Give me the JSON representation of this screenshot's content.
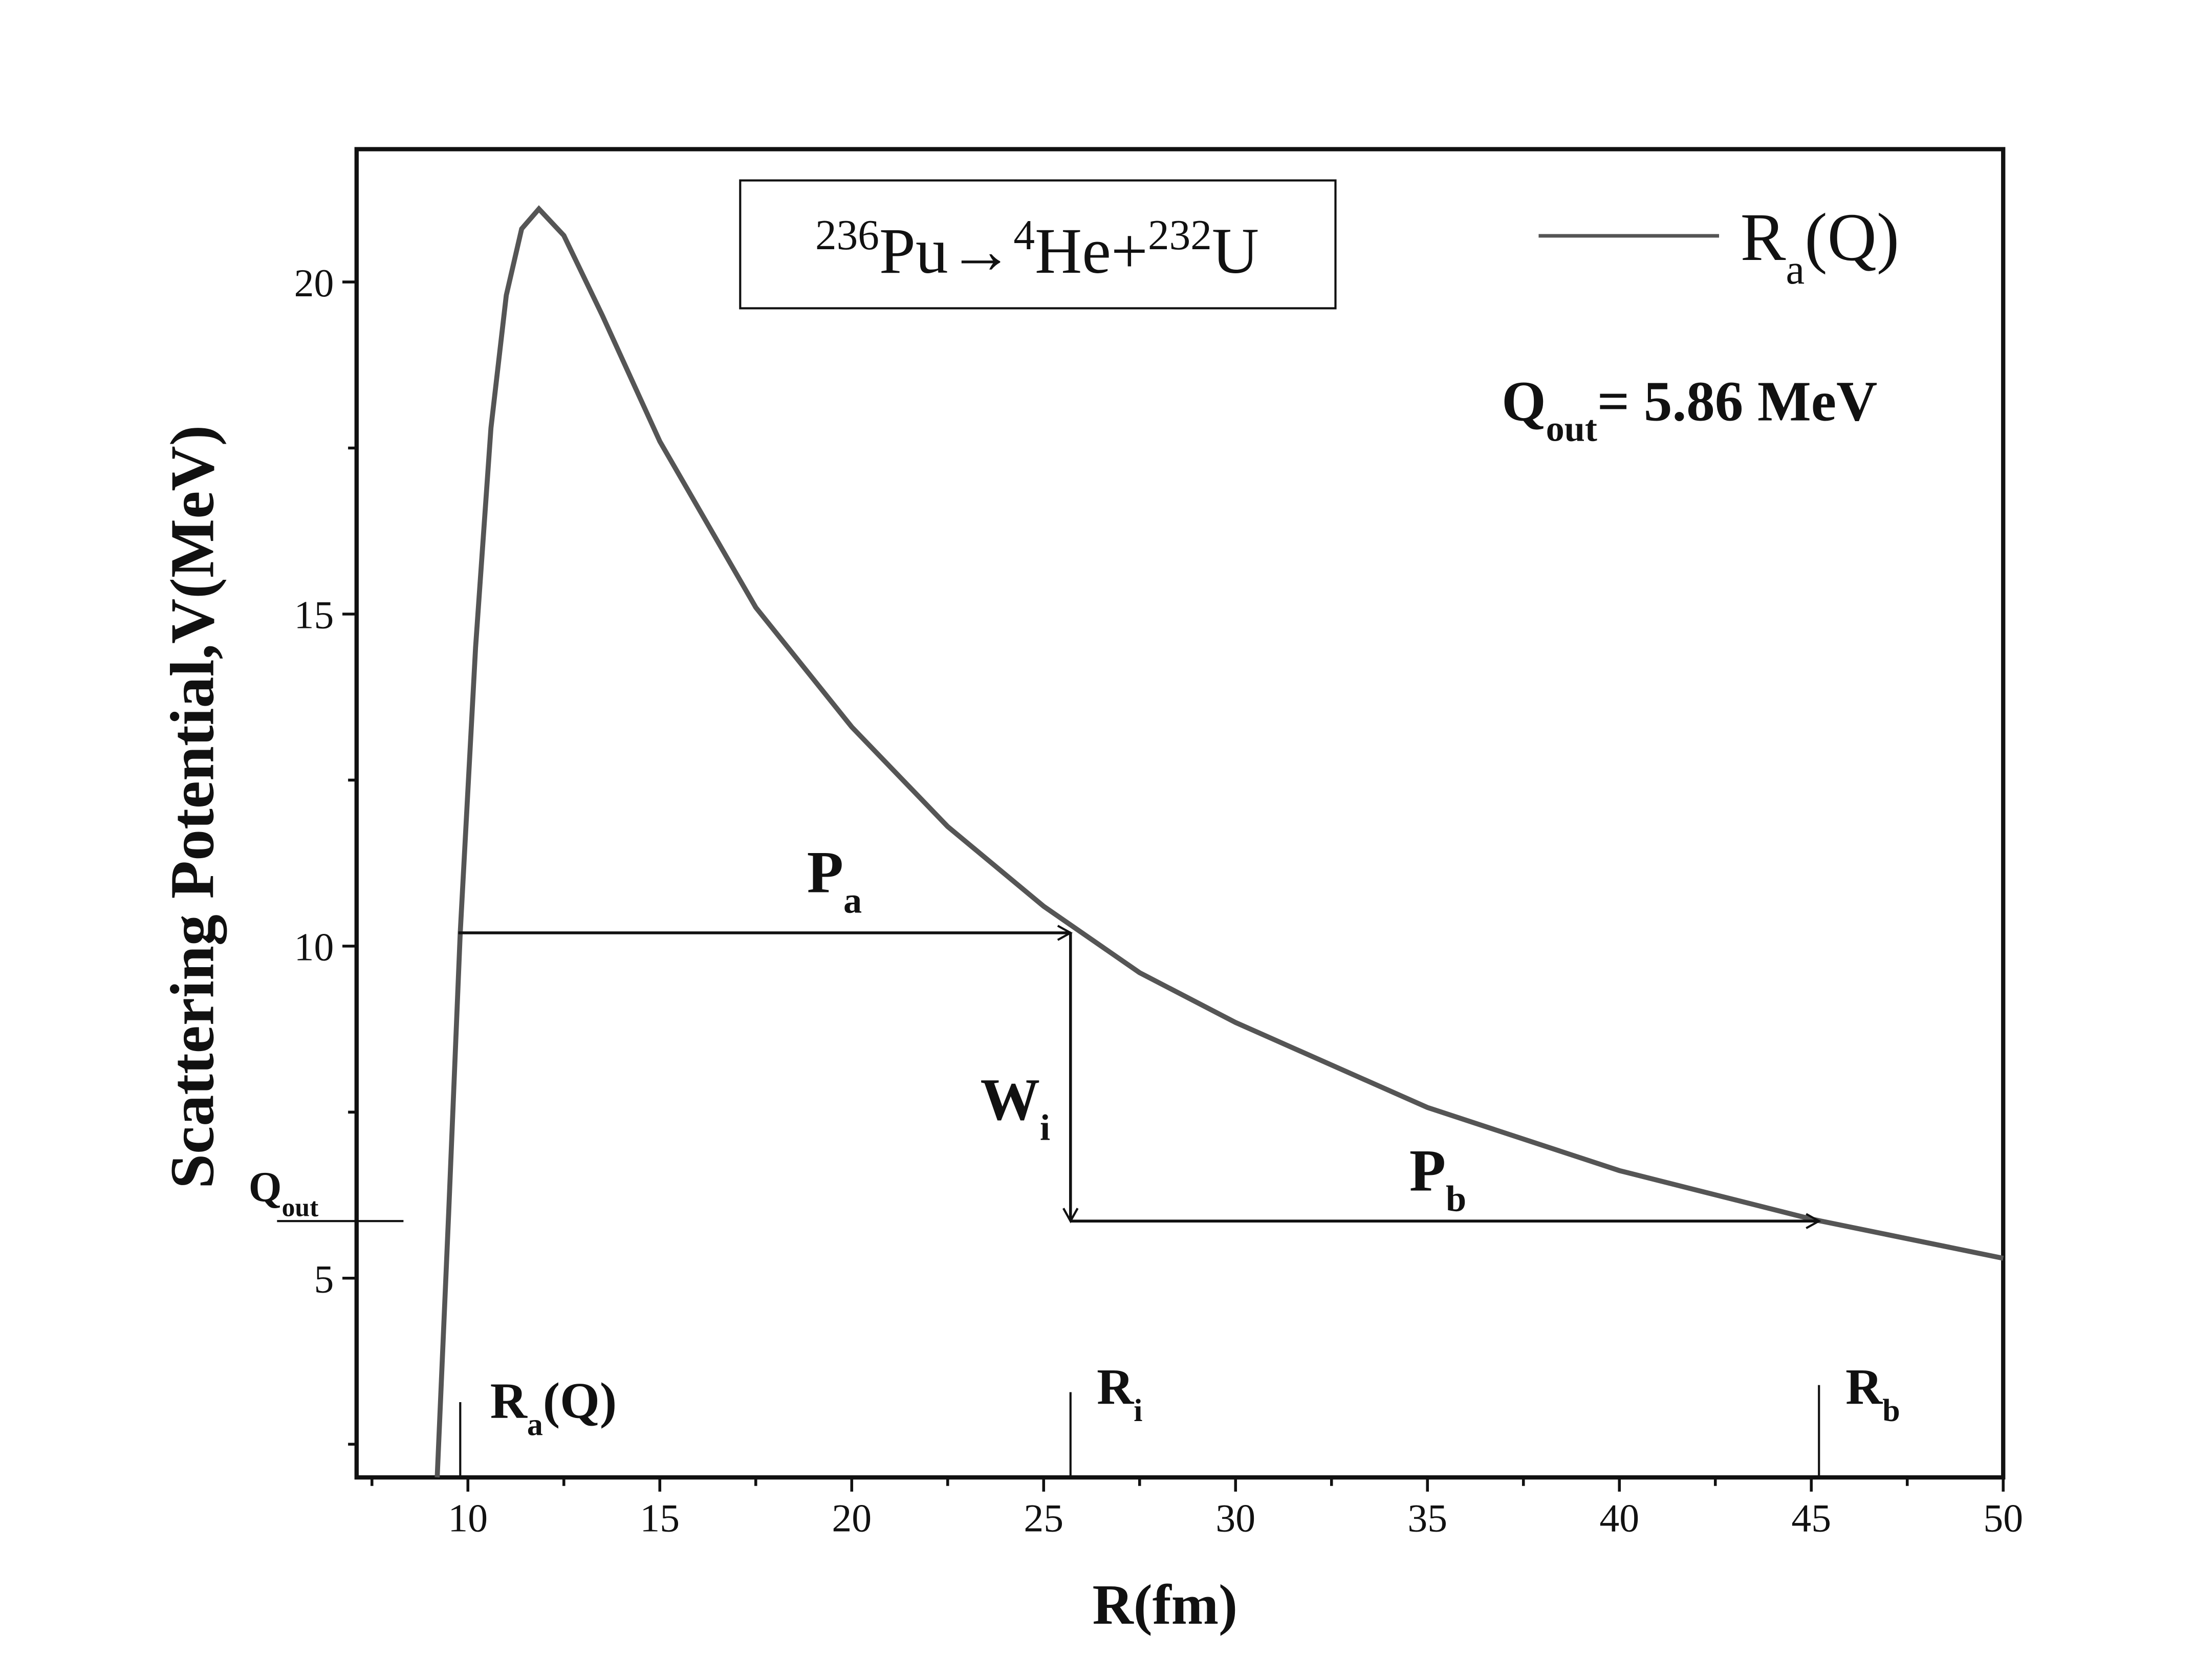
{
  "chart_data": {
    "type": "line",
    "reaction": {
      "parent_mass": "236",
      "parent": "Pu",
      "arrow": "→",
      "alpha_mass": "4",
      "alpha": "He+",
      "daughter_mass": "232",
      "daughter": "U"
    },
    "x_label": "R(fm)",
    "y_label": "Scattering Potential,V(MeV)",
    "x": [
      9.2,
      9.5,
      9.8,
      10.2,
      10.6,
      11.0,
      11.4,
      11.85,
      12.5,
      13.5,
      15,
      17.5,
      20,
      22.5,
      25,
      27.5,
      30,
      35,
      40,
      45,
      50
    ],
    "series": [
      {
        "name": {
          "base": "R",
          "sub": "a",
          "tail": "(Q)"
        },
        "color": "#555555",
        "values": [
          2,
          6,
          10.2,
          14.5,
          17.8,
          19.8,
          20.8,
          21.1,
          20.7,
          19.5,
          17.6,
          15.1,
          13.3,
          11.8,
          10.6,
          9.6,
          8.85,
          7.57,
          6.62,
          5.89,
          5.3
        ]
      }
    ],
    "xlim": [
      7.1,
      50
    ],
    "ylim": [
      2,
      22
    ],
    "xticks": [
      10,
      15,
      20,
      25,
      30,
      35,
      40,
      45,
      50
    ],
    "yticks": [
      5,
      10,
      15,
      20
    ],
    "x_minor_ticks": [
      7.5,
      12.5,
      17.5,
      22.5,
      27.5,
      32.5,
      37.5,
      42.5,
      47.5
    ],
    "y_minor_ticks": [
      2.5,
      7.5,
      12.5,
      17.5
    ],
    "q_out": {
      "base": "Q",
      "sub": "out",
      "value": 5.86,
      "label": "= 5.86 MeV"
    },
    "markers": [
      {
        "base": "R",
        "sub": "a",
        "tail": "(Q)",
        "x": 9.8
      },
      {
        "base": "R",
        "sub": "i",
        "x": 25.7
      },
      {
        "base": "R",
        "sub": "b",
        "x": 45.2
      }
    ],
    "arrows": [
      {
        "base": "P",
        "sub": "a",
        "x": [
          9.75,
          25.7
        ],
        "y": [
          10.2,
          10.2
        ]
      },
      {
        "base": "W",
        "sub": "i",
        "x": [
          25.7,
          25.7
        ],
        "y": [
          10.2,
          5.86
        ]
      },
      {
        "base": "P",
        "sub": "b",
        "x": [
          25.7,
          45.2
        ],
        "y": [
          5.86,
          5.86
        ]
      }
    ]
  }
}
